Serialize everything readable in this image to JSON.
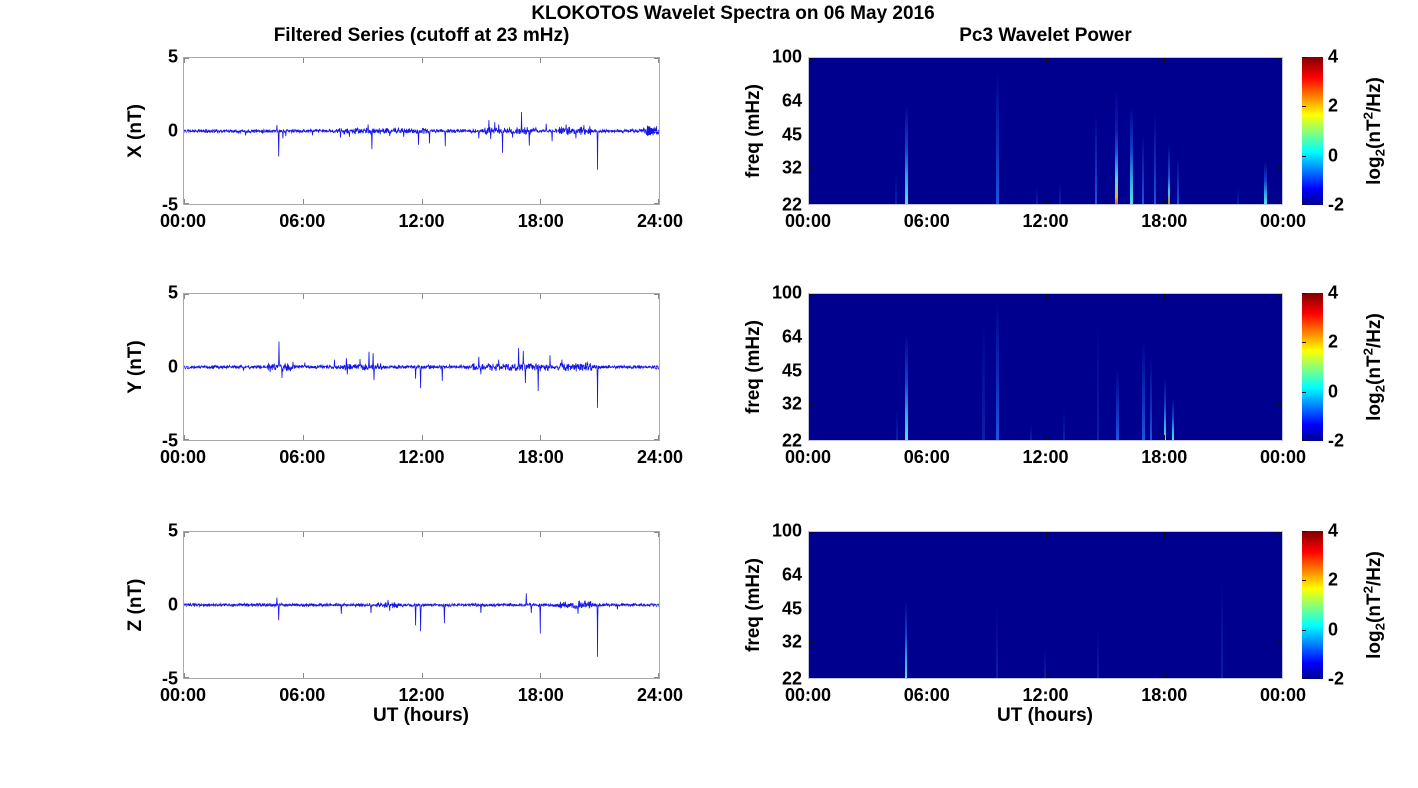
{
  "figure": {
    "title": "KLOKOTOS Wavelet Spectra on 06 May 2016",
    "left_column_title": "Filtered Series (cutoff at 23 mHz)",
    "right_column_title": "Pc3 Wavelet Power",
    "x_axis_label": "UT (hours)",
    "background": "#FFFFFF"
  },
  "colorbar": {
    "ticks": [
      "4",
      "2",
      "0",
      "-2"
    ],
    "tick_fracs_from_top": [
      0,
      0.3333,
      0.6667,
      1
    ],
    "label_parts": {
      "pre": "log",
      "sub": "2",
      "mid": "(nT",
      "sup": "2",
      "post": "/Hz)"
    },
    "gradient_stops": [
      "#00008F 0%",
      "#0000FF 11%",
      "#00FFFF 36%",
      "#FFFF00 61%",
      "#FF0000 86%",
      "#7F0000 100%"
    ]
  },
  "chart_data": [
    {
      "type": "line",
      "id": "series-x",
      "row": 0,
      "seed": 11,
      "ylabel": "X (nT)",
      "ylim": [
        -5,
        5
      ],
      "yticks": [
        "5",
        "0",
        "-5"
      ],
      "xlim_hours": [
        0,
        24
      ],
      "xticks": [
        "00:00",
        "06:00",
        "12:00",
        "18:00",
        "24:00"
      ],
      "line_color": "#1414e8",
      "end_arrow": true,
      "noise_amplitude": 0.09,
      "noise_bursts": [
        [
          7.8,
          12.3,
          0.06
        ],
        [
          15.2,
          17.8,
          0.1
        ],
        [
          18.8,
          20.6,
          0.14
        ],
        [
          23.2,
          24,
          0.16
        ]
      ],
      "spikes": [
        [
          3.1,
          -0.3
        ],
        [
          4.7,
          0.4
        ],
        [
          4.78,
          -1.75
        ],
        [
          5.0,
          -0.5
        ],
        [
          5.15,
          -0.35
        ],
        [
          6.5,
          -0.3
        ],
        [
          7.9,
          -0.45
        ],
        [
          8.35,
          -0.4
        ],
        [
          9.3,
          0.45
        ],
        [
          9.5,
          -1.25
        ],
        [
          10.4,
          -0.35
        ],
        [
          11.1,
          -0.4
        ],
        [
          11.85,
          -0.95
        ],
        [
          12.4,
          -0.85
        ],
        [
          13.2,
          -1.05
        ],
        [
          14.9,
          -0.5
        ],
        [
          15.4,
          0.75
        ],
        [
          15.5,
          -0.55
        ],
        [
          15.7,
          0.6
        ],
        [
          15.9,
          0.45
        ],
        [
          16.1,
          -1.5
        ],
        [
          16.6,
          -0.45
        ],
        [
          17.05,
          1.3
        ],
        [
          17.45,
          -1.0
        ],
        [
          18.3,
          0.5
        ],
        [
          18.6,
          -0.7
        ],
        [
          19.3,
          0.45
        ],
        [
          19.8,
          -0.5
        ],
        [
          20.2,
          0.4
        ],
        [
          20.9,
          -2.65
        ],
        [
          23.5,
          0.35
        ]
      ]
    },
    {
      "type": "line",
      "id": "series-y",
      "row": 1,
      "seed": 22,
      "ylabel": "Y (nT)",
      "ylim": [
        -5,
        5
      ],
      "yticks": [
        "5",
        "0",
        "-5"
      ],
      "xlim_hours": [
        0,
        24
      ],
      "xticks": [
        "00:00",
        "06:00",
        "12:00",
        "18:00",
        "24:00"
      ],
      "line_color": "#1414e8",
      "end_arrow": false,
      "noise_amplitude": 0.09,
      "noise_bursts": [
        [
          4.2,
          5.6,
          0.12
        ],
        [
          7.9,
          10,
          0.08
        ],
        [
          14.5,
          18.4,
          0.1
        ],
        [
          18.9,
          20.6,
          0.16
        ]
      ],
      "spikes": [
        [
          3.0,
          -0.25
        ],
        [
          4.35,
          -0.35
        ],
        [
          4.8,
          1.75
        ],
        [
          4.95,
          -0.75
        ],
        [
          5.5,
          0.35
        ],
        [
          6.1,
          0.3
        ],
        [
          7.6,
          0.5
        ],
        [
          8.2,
          0.6
        ],
        [
          8.25,
          -0.5
        ],
        [
          8.9,
          0.55
        ],
        [
          9.35,
          1.05
        ],
        [
          9.55,
          0.95
        ],
        [
          9.6,
          -0.9
        ],
        [
          11.7,
          -0.8
        ],
        [
          11.95,
          -1.45
        ],
        [
          13.05,
          -0.95
        ],
        [
          14.9,
          0.7
        ],
        [
          15.0,
          -0.5
        ],
        [
          15.9,
          0.5
        ],
        [
          16.9,
          1.3
        ],
        [
          17.15,
          1.1
        ],
        [
          17.25,
          -1.1
        ],
        [
          17.9,
          -1.65
        ],
        [
          18.5,
          0.8
        ],
        [
          19.1,
          0.5
        ],
        [
          20.9,
          -2.8
        ]
      ]
    },
    {
      "type": "line",
      "id": "series-z",
      "row": 2,
      "seed": 33,
      "ylabel": "Z (nT)",
      "ylim": [
        -5,
        5
      ],
      "yticks": [
        "5",
        "0",
        "-5"
      ],
      "xlim_hours": [
        0,
        24
      ],
      "xticks": [
        "00:00",
        "06:00",
        "12:00",
        "18:00",
        "24:00"
      ],
      "xlabel": "UT (hours)",
      "line_color": "#1414e8",
      "end_arrow": false,
      "noise_amplitude": 0.08,
      "noise_bursts": [
        [
          9.8,
          10.8,
          0.08
        ],
        [
          18.9,
          20.6,
          0.13
        ]
      ],
      "spikes": [
        [
          4.7,
          0.5
        ],
        [
          4.78,
          -1.05
        ],
        [
          7.95,
          -0.6
        ],
        [
          9.45,
          -0.55
        ],
        [
          10.3,
          0.35
        ],
        [
          10.4,
          -0.4
        ],
        [
          11.7,
          -1.4
        ],
        [
          11.95,
          -1.8
        ],
        [
          13.15,
          -1.25
        ],
        [
          15.0,
          -0.55
        ],
        [
          17.3,
          0.8
        ],
        [
          17.55,
          -0.55
        ],
        [
          18.0,
          -1.95
        ],
        [
          19.9,
          -0.6
        ],
        [
          20.9,
          -3.55
        ],
        [
          21.9,
          -0.3
        ]
      ]
    },
    {
      "type": "heatmap",
      "id": "wavelet-x",
      "row": 0,
      "ylabel": "freq (mHz)",
      "yticks": [
        "100",
        "64",
        "45",
        "32",
        "22"
      ],
      "ytick_fracs_from_top": [
        0,
        0.2947,
        0.5273,
        0.7525,
        1
      ],
      "freq_range_mhz": [
        22,
        100
      ],
      "y_scale": "log",
      "xlim_hours": [
        0,
        24
      ],
      "xticks": [
        "00:00",
        "06:00",
        "12:00",
        "18:00",
        "00:00"
      ],
      "background": "#00008F",
      "value_range_log2": [
        -2,
        4
      ],
      "streaks": [
        [
          4.35,
          30,
          "faint",
          2
        ],
        [
          4.85,
          62,
          "cyan",
          3
        ],
        [
          9.5,
          86,
          "blue",
          2.5
        ],
        [
          11.5,
          26,
          "faint",
          2
        ],
        [
          12.7,
          28,
          "faint",
          2
        ],
        [
          14.5,
          56,
          "blue",
          2.5
        ],
        [
          15.55,
          72,
          "hot",
          3
        ],
        [
          16.3,
          60,
          "cyan",
          2.5
        ],
        [
          16.9,
          46,
          "blue",
          2
        ],
        [
          17.5,
          56,
          "blue",
          2.5
        ],
        [
          18.2,
          44,
          "hot2",
          2.5
        ],
        [
          18.65,
          36,
          "blue",
          2
        ],
        [
          21.7,
          26,
          "faint",
          2
        ],
        [
          23.1,
          34,
          "cyan",
          2.5
        ]
      ]
    },
    {
      "type": "heatmap",
      "id": "wavelet-y",
      "row": 1,
      "ylabel": "freq (mHz)",
      "yticks": [
        "100",
        "64",
        "45",
        "32",
        "22"
      ],
      "ytick_fracs_from_top": [
        0,
        0.2947,
        0.5273,
        0.7525,
        1
      ],
      "freq_range_mhz": [
        22,
        100
      ],
      "y_scale": "log",
      "xlim_hours": [
        0,
        24
      ],
      "xticks": [
        "00:00",
        "06:00",
        "12:00",
        "18:00",
        "00:00"
      ],
      "background": "#00008F",
      "value_range_log2": [
        -2,
        4
      ],
      "streaks": [
        [
          4.4,
          30,
          "faint",
          2
        ],
        [
          4.85,
          66,
          "cyan",
          3
        ],
        [
          8.8,
          76,
          "faint",
          2.5
        ],
        [
          9.5,
          92,
          "blue",
          2.5
        ],
        [
          11.2,
          26,
          "faint",
          2
        ],
        [
          12.9,
          30,
          "faint",
          2
        ],
        [
          14.6,
          72,
          "faint",
          2.5
        ],
        [
          15.6,
          46,
          "blue",
          2.5
        ],
        [
          16.9,
          62,
          "blue",
          2.5
        ],
        [
          17.3,
          52,
          "blue",
          2
        ],
        [
          18.0,
          42,
          "cyan",
          2.5
        ],
        [
          18.4,
          34,
          "cyan",
          2.5
        ]
      ]
    },
    {
      "type": "heatmap",
      "id": "wavelet-z",
      "row": 2,
      "ylabel": "freq (mHz)",
      "yticks": [
        "100",
        "64",
        "45",
        "32",
        "22"
      ],
      "ytick_fracs_from_top": [
        0,
        0.2947,
        0.5273,
        0.7525,
        1
      ],
      "freq_range_mhz": [
        22,
        100
      ],
      "y_scale": "log",
      "xlim_hours": [
        0,
        24
      ],
      "xticks": [
        "00:00",
        "06:00",
        "12:00",
        "18:00",
        "00:00"
      ],
      "xlabel": "UT (hours)",
      "background": "#00008F",
      "value_range_log2": [
        -2,
        4
      ],
      "streaks": [
        [
          4.85,
          50,
          "cyan",
          2.5
        ],
        [
          9.5,
          46,
          "faint",
          2
        ],
        [
          11.9,
          30,
          "faint",
          2
        ],
        [
          14.6,
          36,
          "faint",
          2
        ],
        [
          20.9,
          60,
          "faint",
          2
        ]
      ]
    }
  ],
  "streak_palettes": {
    "hot": "#c86414 0%, #e8b43c 6%, #50d8e8 22%, #1a55dc 45%, #0a18b4 65%, rgba(0,0,143,0) 100%",
    "hot2": "#d2821e 0%, #46c8e6 18%, #1a50d8 40%, rgba(0,0,143,0) 90%",
    "cyan": "#55e0f0 0%, #2fa8e8 25%, #1340cc 55%, rgba(0,0,143,0) 100%",
    "blue": "#1d55e0 0%, #0e2cb8 45%, rgba(0,0,143,0) 100%",
    "faint": "#0a20a8 0%, rgba(0,0,143,0) 100%"
  }
}
